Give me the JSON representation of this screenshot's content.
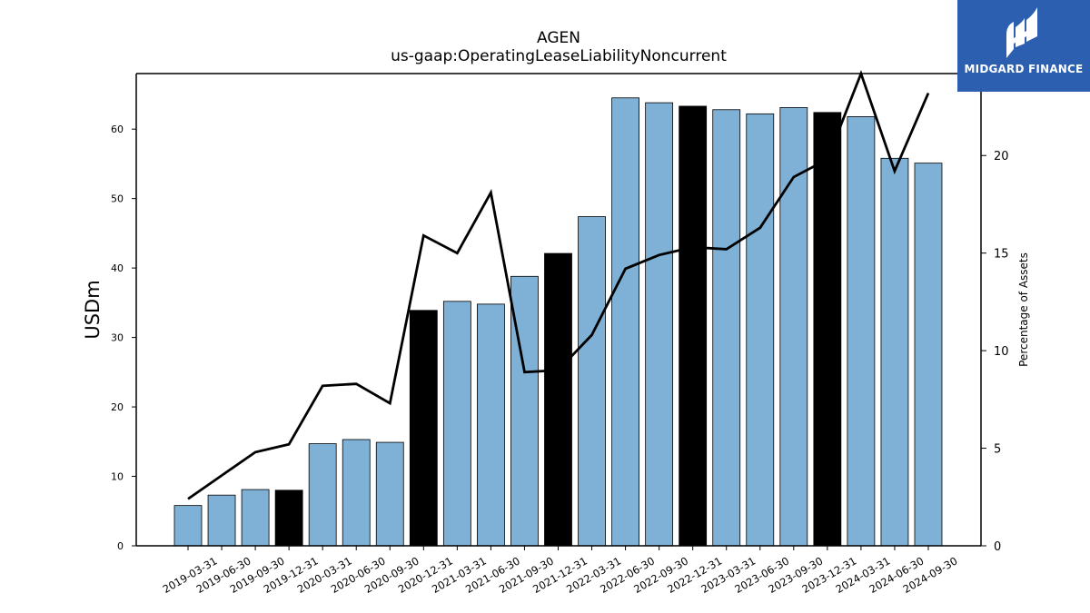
{
  "brand": {
    "name": "MIDGARD FINANCE",
    "background": "#2d5fb0"
  },
  "chart_data": {
    "type": "bar",
    "title": "AGEN",
    "subtitle": "us-gaap:OperatingLeaseLiabilityNoncurrent",
    "ylabel": "USDm",
    "y2label": "Percentage of Assets",
    "ylim": [
      0,
      68
    ],
    "y2lim": [
      0,
      24.2
    ],
    "yticks": [
      0,
      10,
      20,
      30,
      40,
      50,
      60
    ],
    "y2ticks": [
      0,
      5,
      10,
      15,
      20
    ],
    "grid": false,
    "colors": {
      "bar": "#7fb0d5",
      "bar_highlight": "#000000",
      "line": "#000000"
    },
    "categories": [
      "2019-03-31",
      "2019-06-30",
      "2019-09-30",
      "2019-12-31",
      "2020-03-31",
      "2020-06-30",
      "2020-09-30",
      "2020-12-31",
      "2021-03-31",
      "2021-06-30",
      "2021-09-30",
      "2021-12-31",
      "2022-03-31",
      "2022-06-30",
      "2022-09-30",
      "2022-12-31",
      "2023-03-31",
      "2023-06-30",
      "2023-09-30",
      "2023-12-31",
      "2024-03-31",
      "2024-06-30",
      "2024-09-30"
    ],
    "series": [
      {
        "kind": "bar",
        "axis": "left",
        "values": [
          5.8,
          7.3,
          8.1,
          8.0,
          14.7,
          15.3,
          14.9,
          33.9,
          35.2,
          34.8,
          38.8,
          42.1,
          47.4,
          64.5,
          63.8,
          63.3,
          62.8,
          62.2,
          63.1,
          62.4,
          61.8,
          55.8,
          55.1
        ],
        "highlight": [
          false,
          false,
          false,
          true,
          false,
          false,
          false,
          true,
          false,
          false,
          false,
          true,
          false,
          false,
          false,
          true,
          false,
          false,
          false,
          true,
          false,
          false,
          false
        ]
      },
      {
        "kind": "line",
        "axis": "right",
        "values": [
          2.4,
          3.6,
          4.8,
          5.2,
          8.2,
          8.3,
          7.3,
          15.9,
          15.0,
          18.1,
          8.9,
          9.0,
          10.8,
          14.2,
          14.9,
          15.3,
          15.2,
          16.3,
          18.9,
          19.8,
          24.2,
          19.2,
          23.2
        ]
      }
    ]
  }
}
